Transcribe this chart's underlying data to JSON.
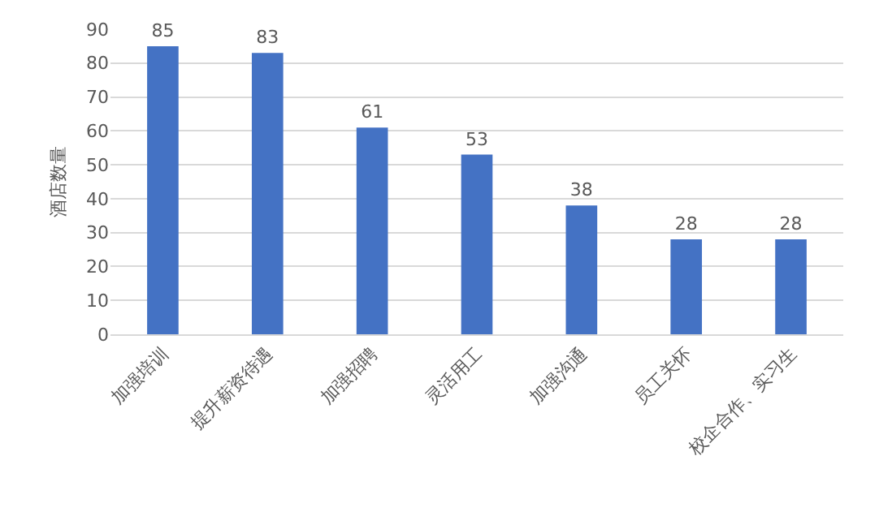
{
  "chart_data": {
    "type": "bar",
    "ylabel": "酒店数量",
    "categories": [
      "加强培训",
      "提升薪资待遇",
      "加强招聘",
      "灵活用工",
      "加强沟通",
      "员工关怀",
      "校企合作、实习生"
    ],
    "values": [
      85,
      83,
      61,
      53,
      38,
      28,
      28
    ],
    "color": "#4472c4",
    "ylim": [
      0,
      90
    ],
    "yticks": [
      0,
      10,
      20,
      30,
      40,
      50,
      60,
      70,
      80,
      90
    ],
    "grid": "y",
    "data_labels": true
  }
}
